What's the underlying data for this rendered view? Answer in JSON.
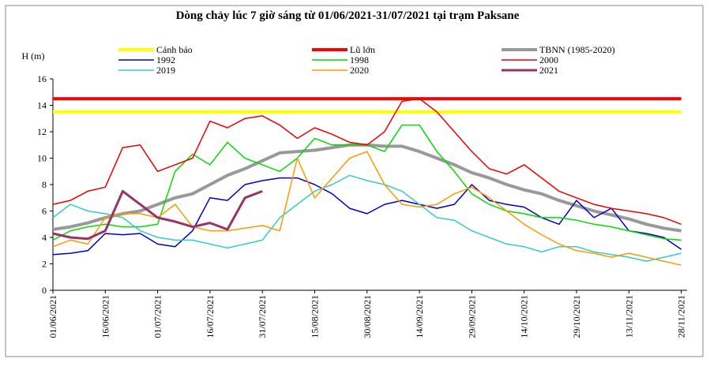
{
  "chart_data": {
    "type": "line",
    "title": "Dòng chảy lúc 7 giờ sáng từ 01/06/2021-31/07/2021 tại trạm Paksane",
    "y_label": "H (m)",
    "x": [
      "01/06/2021",
      "06/06/2021",
      "11/06/2021",
      "16/06/2021",
      "21/06/2021",
      "26/06/2021",
      "01/07/2021",
      "06/07/2021",
      "11/07/2021",
      "16/07/2021",
      "21/07/2021",
      "26/07/2021",
      "31/07/2021",
      "05/08/2021",
      "10/08/2021",
      "15/08/2021",
      "20/08/2021",
      "25/08/2021",
      "30/08/2021",
      "04/09/2021",
      "09/09/2021",
      "14/09/2021",
      "19/09/2021",
      "24/09/2021",
      "29/09/2021",
      "04/10/2021",
      "09/10/2021",
      "14/10/2021",
      "19/10/2021",
      "24/10/2021",
      "29/10/2021",
      "03/11/2021",
      "08/11/2021",
      "13/11/2021",
      "18/11/2021",
      "23/11/2021",
      "28/11/2021"
    ],
    "xticks": [
      "01/06/2021",
      "16/06/2021",
      "01/07/2021",
      "16/07/2021",
      "31/07/2021",
      "15/08/2021",
      "30/08/2021",
      "14/09/2021",
      "29/09/2021",
      "14/10/2021",
      "29/10/2021",
      "13/11/2021",
      "28/11/2021"
    ],
    "ylim": [
      0,
      16
    ],
    "yticks": [
      0,
      2,
      4,
      6,
      8,
      10,
      12,
      14,
      16
    ],
    "series": [
      {
        "name": "Cảnh báo",
        "color": "#ffff00",
        "values": [
          13.5,
          13.5,
          13.5,
          13.5,
          13.5,
          13.5,
          13.5,
          13.5,
          13.5,
          13.5,
          13.5,
          13.5,
          13.5,
          13.5,
          13.5,
          13.5,
          13.5,
          13.5,
          13.5,
          13.5,
          13.5,
          13.5,
          13.5,
          13.5,
          13.5,
          13.5,
          13.5,
          13.5,
          13.5,
          13.5,
          13.5,
          13.5,
          13.5,
          13.5,
          13.5,
          13.5,
          13.5
        ]
      },
      {
        "name": "Lũ lớn",
        "color": "#ff0000",
        "values": [
          14.5,
          14.5,
          14.5,
          14.5,
          14.5,
          14.5,
          14.5,
          14.5,
          14.5,
          14.5,
          14.5,
          14.5,
          14.5,
          14.5,
          14.5,
          14.5,
          14.5,
          14.5,
          14.5,
          14.5,
          14.5,
          14.5,
          14.5,
          14.5,
          14.5,
          14.5,
          14.5,
          14.5,
          14.5,
          14.5,
          14.5,
          14.5,
          14.5,
          14.5,
          14.5,
          14.5,
          14.5
        ]
      },
      {
        "name": "TBNN (1985-2020)",
        "color": "#999999",
        "values": [
          4.6,
          4.8,
          5.1,
          5.5,
          5.8,
          6.0,
          6.5,
          7.0,
          7.3,
          8.0,
          8.7,
          9.2,
          9.8,
          10.4,
          10.5,
          10.6,
          10.8,
          11.0,
          11.0,
          10.9,
          10.9,
          10.5,
          10.0,
          9.5,
          8.9,
          8.5,
          8.0,
          7.6,
          7.3,
          6.8,
          6.4,
          6.0,
          5.7,
          5.4,
          5.0,
          4.7,
          4.5
        ]
      },
      {
        "name": "1992",
        "color": "#0000cc",
        "values": [
          2.7,
          2.8,
          3.0,
          4.3,
          4.2,
          4.3,
          3.5,
          3.3,
          4.5,
          7.0,
          6.8,
          8.0,
          8.3,
          8.5,
          8.5,
          8.0,
          7.3,
          6.2,
          5.8,
          6.5,
          6.8,
          6.5,
          6.2,
          6.5,
          8.0,
          6.8,
          6.5,
          6.3,
          5.5,
          5.0,
          6.8,
          5.5,
          6.2,
          4.5,
          4.3,
          4.0,
          3.1
        ]
      },
      {
        "name": "1998",
        "color": "#00dd00",
        "values": [
          3.8,
          4.5,
          4.8,
          5.0,
          4.8,
          4.8,
          5.0,
          9.0,
          10.3,
          9.5,
          11.2,
          10.0,
          9.5,
          9.0,
          10.0,
          11.5,
          11.0,
          11.0,
          11.0,
          10.5,
          12.5,
          12.5,
          10.5,
          9.0,
          7.3,
          6.5,
          6.0,
          5.8,
          5.5,
          5.5,
          5.3,
          5.0,
          4.8,
          4.5,
          4.2,
          3.9,
          3.8
        ]
      },
      {
        "name": "2000",
        "color": "#ee0000",
        "values": [
          6.5,
          6.8,
          7.5,
          7.8,
          10.8,
          11.0,
          9.0,
          9.5,
          10.0,
          12.8,
          12.3,
          13.0,
          13.2,
          12.5,
          11.5,
          12.3,
          11.8,
          11.2,
          11.0,
          12.0,
          14.3,
          14.5,
          13.5,
          12.0,
          10.5,
          9.2,
          8.8,
          9.5,
          8.5,
          7.5,
          7.0,
          6.5,
          6.2,
          6.0,
          5.8,
          5.5,
          5.0
        ]
      },
      {
        "name": "2019",
        "color": "#33cccc",
        "values": [
          5.5,
          6.5,
          6.0,
          5.8,
          5.5,
          4.5,
          4.0,
          3.8,
          3.8,
          3.5,
          3.2,
          3.5,
          3.8,
          5.5,
          6.5,
          7.5,
          8.0,
          8.7,
          8.3,
          8.0,
          7.5,
          6.5,
          5.5,
          5.3,
          4.5,
          4.0,
          3.5,
          3.3,
          2.9,
          3.3,
          3.3,
          2.9,
          2.7,
          2.5,
          2.2,
          2.5,
          2.8
        ]
      },
      {
        "name": "2020",
        "color": "#ff9900",
        "values": [
          3.3,
          3.8,
          3.5,
          5.5,
          5.8,
          5.8,
          5.5,
          6.5,
          4.8,
          4.5,
          4.5,
          4.7,
          4.9,
          4.5,
          10.0,
          7.0,
          8.5,
          10.0,
          10.5,
          8.0,
          6.5,
          6.3,
          6.5,
          7.3,
          7.8,
          7.0,
          6.0,
          5.0,
          4.2,
          3.5,
          3.0,
          2.8,
          2.5,
          2.8,
          2.5,
          2.2,
          1.9
        ]
      },
      {
        "name": "2021",
        "color": "#993366",
        "values": [
          4.3,
          4.0,
          3.9,
          4.5,
          7.5,
          6.5,
          5.5,
          5.2,
          4.8,
          5.1,
          4.6,
          7.0,
          7.5,
          null,
          null,
          null,
          null,
          null,
          null,
          null,
          null,
          null,
          null,
          null,
          null,
          null,
          null,
          null,
          null,
          null,
          null,
          null,
          null,
          null,
          null,
          null,
          null
        ]
      }
    ]
  }
}
